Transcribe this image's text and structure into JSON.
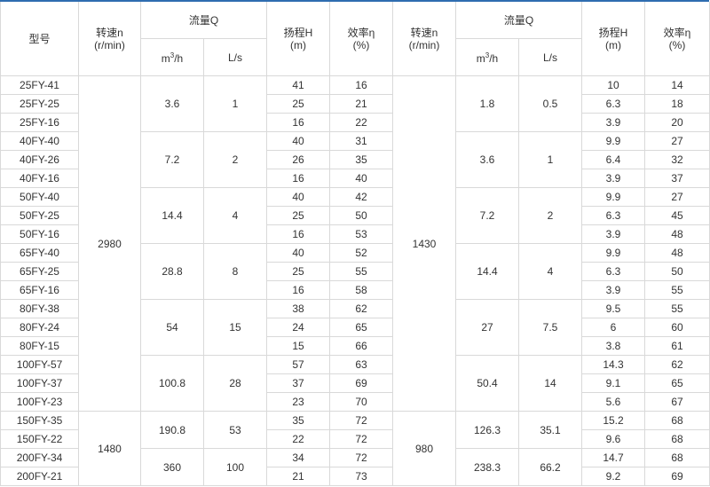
{
  "headers": {
    "model": "型号",
    "speed": "转速n",
    "speed_unit": "(r/min)",
    "flow": "流量Q",
    "flow_m3h": "m",
    "flow_m3h_sup": "3",
    "flow_m3h_tail": "/h",
    "flow_ls": "L/s",
    "head": "扬程H",
    "head_unit": "(m)",
    "eff": "效率η",
    "eff_unit": "(%)"
  },
  "rows": [
    {
      "model": "25FY-41",
      "h1": "41",
      "e1": "16",
      "h2": "10",
      "e2": "14"
    },
    {
      "model": "25FY-25",
      "h1": "25",
      "e1": "21",
      "h2": "6.3",
      "e2": "18"
    },
    {
      "model": "25FY-16",
      "h1": "16",
      "e1": "22",
      "h2": "3.9",
      "e2": "20"
    },
    {
      "model": "40FY-40",
      "h1": "40",
      "e1": "31",
      "h2": "9.9",
      "e2": "27"
    },
    {
      "model": "40FY-26",
      "h1": "26",
      "e1": "35",
      "h2": "6.4",
      "e2": "32"
    },
    {
      "model": "40FY-16",
      "h1": "16",
      "e1": "40",
      "h2": "3.9",
      "e2": "37"
    },
    {
      "model": "50FY-40",
      "h1": "40",
      "e1": "42",
      "h2": "9.9",
      "e2": "27"
    },
    {
      "model": "50FY-25",
      "h1": "25",
      "e1": "50",
      "h2": "6.3",
      "e2": "45"
    },
    {
      "model": "50FY-16",
      "h1": "16",
      "e1": "53",
      "h2": "3.9",
      "e2": "48"
    },
    {
      "model": "65FY-40",
      "h1": "40",
      "e1": "52",
      "h2": "9.9",
      "e2": "48"
    },
    {
      "model": "65FY-25",
      "h1": "25",
      "e1": "55",
      "h2": "6.3",
      "e2": "50"
    },
    {
      "model": "65FY-16",
      "h1": "16",
      "e1": "58",
      "h2": "3.9",
      "e2": "55"
    },
    {
      "model": "80FY-38",
      "h1": "38",
      "e1": "62",
      "h2": "9.5",
      "e2": "55"
    },
    {
      "model": "80FY-24",
      "h1": "24",
      "e1": "65",
      "h2": "6",
      "e2": "60"
    },
    {
      "model": "80FY-15",
      "h1": "15",
      "e1": "66",
      "h2": "3.8",
      "e2": "61"
    },
    {
      "model": "100FY-57",
      "h1": "57",
      "e1": "63",
      "h2": "14.3",
      "e2": "62"
    },
    {
      "model": "100FY-37",
      "h1": "37",
      "e1": "69",
      "h2": "9.1",
      "e2": "65"
    },
    {
      "model": "100FY-23",
      "h1": "23",
      "e1": "70",
      "h2": "5.6",
      "e2": "67"
    },
    {
      "model": "150FY-35",
      "h1": "35",
      "e1": "72",
      "h2": "15.2",
      "e2": "68"
    },
    {
      "model": "150FY-22",
      "h1": "22",
      "e1": "72",
      "h2": "9.6",
      "e2": "68"
    },
    {
      "model": "200FY-34",
      "h1": "34",
      "e1": "72",
      "h2": "14.7",
      "e2": "68"
    },
    {
      "model": "200FY-21",
      "h1": "21",
      "e1": "73",
      "h2": "9.2",
      "e2": "69"
    }
  ],
  "speed_groups": [
    {
      "rows": 18,
      "left": "2980",
      "right": "1430"
    },
    {
      "rows": 4,
      "left": "1480",
      "right": "980"
    }
  ],
  "flow_groups": [
    {
      "rows": 3,
      "m3h1": "3.6",
      "ls1": "1",
      "m3h2": "1.8",
      "ls2": "0.5"
    },
    {
      "rows": 3,
      "m3h1": "7.2",
      "ls1": "2",
      "m3h2": "3.6",
      "ls2": "1"
    },
    {
      "rows": 3,
      "m3h1": "14.4",
      "ls1": "4",
      "m3h2": "7.2",
      "ls2": "2"
    },
    {
      "rows": 3,
      "m3h1": "28.8",
      "ls1": "8",
      "m3h2": "14.4",
      "ls2": "4"
    },
    {
      "rows": 3,
      "m3h1": "54",
      "ls1": "15",
      "m3h2": "27",
      "ls2": "7.5"
    },
    {
      "rows": 3,
      "m3h1": "100.8",
      "ls1": "28",
      "m3h2": "50.4",
      "ls2": "14"
    },
    {
      "rows": 2,
      "m3h1": "190.8",
      "ls1": "53",
      "m3h2": "126.3",
      "ls2": "35.1"
    },
    {
      "rows": 2,
      "m3h1": "360",
      "ls1": "100",
      "m3h2": "238.3",
      "ls2": "66.2"
    }
  ],
  "colors": {
    "top_border": "#2e6db0",
    "grid": "#d9d9d9",
    "text": "#333333"
  }
}
